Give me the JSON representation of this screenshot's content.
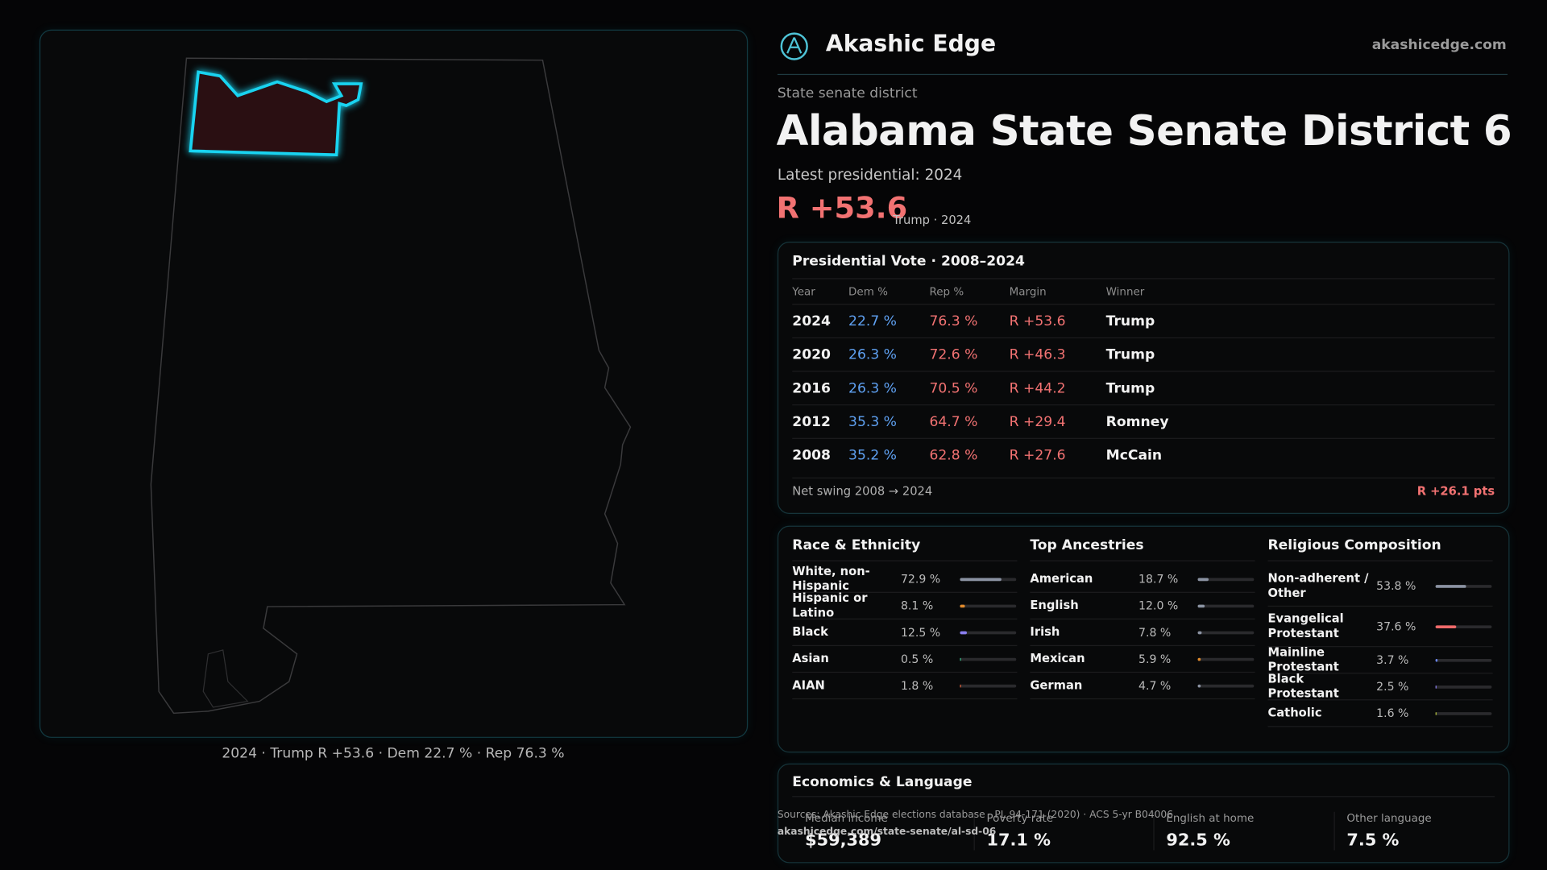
{
  "header": {
    "brand": "Akashic Edge",
    "site": "akashicedge.com"
  },
  "district": {
    "kind": "State senate district",
    "title": "Alabama State Senate District 6",
    "latest": "Latest presidential: 2024",
    "margin": "R +53.6",
    "margin_note": "Trump · 2024"
  },
  "map_caption": "2024 · Trump R +53.6 · Dem 22.7 % · Rep 76.3 %",
  "presidential": {
    "title": "Presidential Vote · 2008–2024",
    "columns": [
      "Year",
      "Dem %",
      "Rep %",
      "Margin",
      "Winner"
    ],
    "rows": [
      [
        "2024",
        "22.7 %",
        "76.3 %",
        "R +53.6",
        "Trump"
      ],
      [
        "2020",
        "26.3 %",
        "72.6 %",
        "R +46.3",
        "Trump"
      ],
      [
        "2016",
        "26.3 %",
        "70.5 %",
        "R +44.2",
        "Trump"
      ],
      [
        "2012",
        "35.3 %",
        "64.7 %",
        "R +29.4",
        "Romney"
      ],
      [
        "2008",
        "35.2 %",
        "62.8 %",
        "R +27.6",
        "McCain"
      ]
    ],
    "swing_label": "Net swing 2008 → 2024",
    "swing_value": "R +26.1 pts"
  },
  "demographics": [
    {
      "title": "Race & Ethnicity",
      "rows": [
        {
          "label": "White, non-Hispanic",
          "value": "72.9 %",
          "color": "#8b93a3"
        },
        {
          "label": "Hispanic or Latino",
          "value": "8.1 %",
          "color": "#e08a2c"
        },
        {
          "label": "Black",
          "value": "12.5 %",
          "color": "#8a7ef0"
        },
        {
          "label": "Asian",
          "value": "0.5 %",
          "color": "#3bbf8a"
        },
        {
          "label": "AIAN",
          "value": "1.8 %",
          "color": "#e0603a"
        }
      ]
    },
    {
      "title": "Top Ancestries",
      "rows": [
        {
          "label": "American",
          "value": "18.7 %",
          "color": "#8b93a3"
        },
        {
          "label": "English",
          "value": "12.0 %",
          "color": "#8b93a3"
        },
        {
          "label": "Irish",
          "value": "7.8 %",
          "color": "#8b93a3"
        },
        {
          "label": "Mexican",
          "value": "5.9 %",
          "color": "#e08a2c"
        },
        {
          "label": "German",
          "value": "4.7 %",
          "color": "#8b93a3"
        }
      ]
    },
    {
      "title": "Religious Composition",
      "rows": [
        {
          "label": "Non-adherent / Other",
          "value": "53.8 %",
          "color": "#8b93a3"
        },
        {
          "label": "Evangelical Protestant",
          "value": "37.6 %",
          "color": "#f06a6a"
        },
        {
          "label": "Mainline Protestant",
          "value": "3.7 %",
          "color": "#6a86f0"
        },
        {
          "label": "Black Protestant",
          "value": "2.5 %",
          "color": "#8a7ef0"
        },
        {
          "label": "Catholic",
          "value": "1.6 %",
          "color": "#b6c43a"
        }
      ]
    }
  ],
  "economics": {
    "title": "Economics & Language",
    "metrics": [
      {
        "label": "Median income",
        "value": "$59,389"
      },
      {
        "label": "Poverty rate",
        "value": "17.1 %"
      },
      {
        "label": "English at home",
        "value": "92.5 %"
      },
      {
        "label": "Other language",
        "value": "7.5 %"
      }
    ]
  },
  "sources": [
    "Sources: Akashic Edge elections database · PL 94-171 (2020) · ACS 5-yr B04006",
    "akashicedge.com/state-senate/al-sd-06"
  ]
}
